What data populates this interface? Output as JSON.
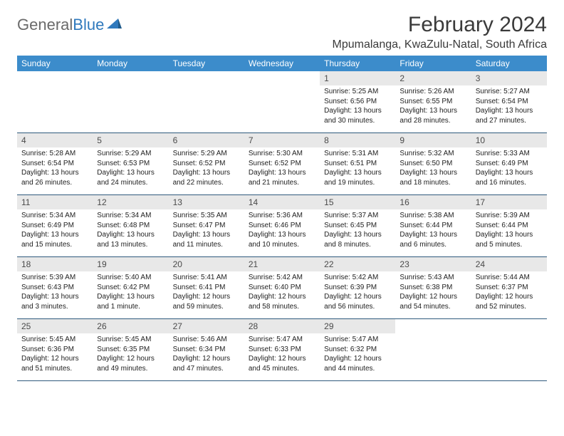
{
  "logo": {
    "text1": "General",
    "text2": "Blue"
  },
  "title": "February 2024",
  "location": "Mpumalanga, KwaZulu-Natal, South Africa",
  "colors": {
    "header_bg": "#3c8ccb",
    "daynum_bg": "#e8e8e8",
    "week_border": "#2f5a7d",
    "logo_gray": "#6a6a6a",
    "logo_blue": "#2f79bd"
  },
  "weekdays": [
    "Sunday",
    "Monday",
    "Tuesday",
    "Wednesday",
    "Thursday",
    "Friday",
    "Saturday"
  ],
  "weeks": [
    [
      {
        "n": "",
        "sr": "",
        "ss": "",
        "dl": ""
      },
      {
        "n": "",
        "sr": "",
        "ss": "",
        "dl": ""
      },
      {
        "n": "",
        "sr": "",
        "ss": "",
        "dl": ""
      },
      {
        "n": "",
        "sr": "",
        "ss": "",
        "dl": ""
      },
      {
        "n": "1",
        "sr": "Sunrise: 5:25 AM",
        "ss": "Sunset: 6:56 PM",
        "dl": "Daylight: 13 hours and 30 minutes."
      },
      {
        "n": "2",
        "sr": "Sunrise: 5:26 AM",
        "ss": "Sunset: 6:55 PM",
        "dl": "Daylight: 13 hours and 28 minutes."
      },
      {
        "n": "3",
        "sr": "Sunrise: 5:27 AM",
        "ss": "Sunset: 6:54 PM",
        "dl": "Daylight: 13 hours and 27 minutes."
      }
    ],
    [
      {
        "n": "4",
        "sr": "Sunrise: 5:28 AM",
        "ss": "Sunset: 6:54 PM",
        "dl": "Daylight: 13 hours and 26 minutes."
      },
      {
        "n": "5",
        "sr": "Sunrise: 5:29 AM",
        "ss": "Sunset: 6:53 PM",
        "dl": "Daylight: 13 hours and 24 minutes."
      },
      {
        "n": "6",
        "sr": "Sunrise: 5:29 AM",
        "ss": "Sunset: 6:52 PM",
        "dl": "Daylight: 13 hours and 22 minutes."
      },
      {
        "n": "7",
        "sr": "Sunrise: 5:30 AM",
        "ss": "Sunset: 6:52 PM",
        "dl": "Daylight: 13 hours and 21 minutes."
      },
      {
        "n": "8",
        "sr": "Sunrise: 5:31 AM",
        "ss": "Sunset: 6:51 PM",
        "dl": "Daylight: 13 hours and 19 minutes."
      },
      {
        "n": "9",
        "sr": "Sunrise: 5:32 AM",
        "ss": "Sunset: 6:50 PM",
        "dl": "Daylight: 13 hours and 18 minutes."
      },
      {
        "n": "10",
        "sr": "Sunrise: 5:33 AM",
        "ss": "Sunset: 6:49 PM",
        "dl": "Daylight: 13 hours and 16 minutes."
      }
    ],
    [
      {
        "n": "11",
        "sr": "Sunrise: 5:34 AM",
        "ss": "Sunset: 6:49 PM",
        "dl": "Daylight: 13 hours and 15 minutes."
      },
      {
        "n": "12",
        "sr": "Sunrise: 5:34 AM",
        "ss": "Sunset: 6:48 PM",
        "dl": "Daylight: 13 hours and 13 minutes."
      },
      {
        "n": "13",
        "sr": "Sunrise: 5:35 AM",
        "ss": "Sunset: 6:47 PM",
        "dl": "Daylight: 13 hours and 11 minutes."
      },
      {
        "n": "14",
        "sr": "Sunrise: 5:36 AM",
        "ss": "Sunset: 6:46 PM",
        "dl": "Daylight: 13 hours and 10 minutes."
      },
      {
        "n": "15",
        "sr": "Sunrise: 5:37 AM",
        "ss": "Sunset: 6:45 PM",
        "dl": "Daylight: 13 hours and 8 minutes."
      },
      {
        "n": "16",
        "sr": "Sunrise: 5:38 AM",
        "ss": "Sunset: 6:44 PM",
        "dl": "Daylight: 13 hours and 6 minutes."
      },
      {
        "n": "17",
        "sr": "Sunrise: 5:39 AM",
        "ss": "Sunset: 6:44 PM",
        "dl": "Daylight: 13 hours and 5 minutes."
      }
    ],
    [
      {
        "n": "18",
        "sr": "Sunrise: 5:39 AM",
        "ss": "Sunset: 6:43 PM",
        "dl": "Daylight: 13 hours and 3 minutes."
      },
      {
        "n": "19",
        "sr": "Sunrise: 5:40 AM",
        "ss": "Sunset: 6:42 PM",
        "dl": "Daylight: 13 hours and 1 minute."
      },
      {
        "n": "20",
        "sr": "Sunrise: 5:41 AM",
        "ss": "Sunset: 6:41 PM",
        "dl": "Daylight: 12 hours and 59 minutes."
      },
      {
        "n": "21",
        "sr": "Sunrise: 5:42 AM",
        "ss": "Sunset: 6:40 PM",
        "dl": "Daylight: 12 hours and 58 minutes."
      },
      {
        "n": "22",
        "sr": "Sunrise: 5:42 AM",
        "ss": "Sunset: 6:39 PM",
        "dl": "Daylight: 12 hours and 56 minutes."
      },
      {
        "n": "23",
        "sr": "Sunrise: 5:43 AM",
        "ss": "Sunset: 6:38 PM",
        "dl": "Daylight: 12 hours and 54 minutes."
      },
      {
        "n": "24",
        "sr": "Sunrise: 5:44 AM",
        "ss": "Sunset: 6:37 PM",
        "dl": "Daylight: 12 hours and 52 minutes."
      }
    ],
    [
      {
        "n": "25",
        "sr": "Sunrise: 5:45 AM",
        "ss": "Sunset: 6:36 PM",
        "dl": "Daylight: 12 hours and 51 minutes."
      },
      {
        "n": "26",
        "sr": "Sunrise: 5:45 AM",
        "ss": "Sunset: 6:35 PM",
        "dl": "Daylight: 12 hours and 49 minutes."
      },
      {
        "n": "27",
        "sr": "Sunrise: 5:46 AM",
        "ss": "Sunset: 6:34 PM",
        "dl": "Daylight: 12 hours and 47 minutes."
      },
      {
        "n": "28",
        "sr": "Sunrise: 5:47 AM",
        "ss": "Sunset: 6:33 PM",
        "dl": "Daylight: 12 hours and 45 minutes."
      },
      {
        "n": "29",
        "sr": "Sunrise: 5:47 AM",
        "ss": "Sunset: 6:32 PM",
        "dl": "Daylight: 12 hours and 44 minutes."
      },
      {
        "n": "",
        "sr": "",
        "ss": "",
        "dl": ""
      },
      {
        "n": "",
        "sr": "",
        "ss": "",
        "dl": ""
      }
    ]
  ]
}
